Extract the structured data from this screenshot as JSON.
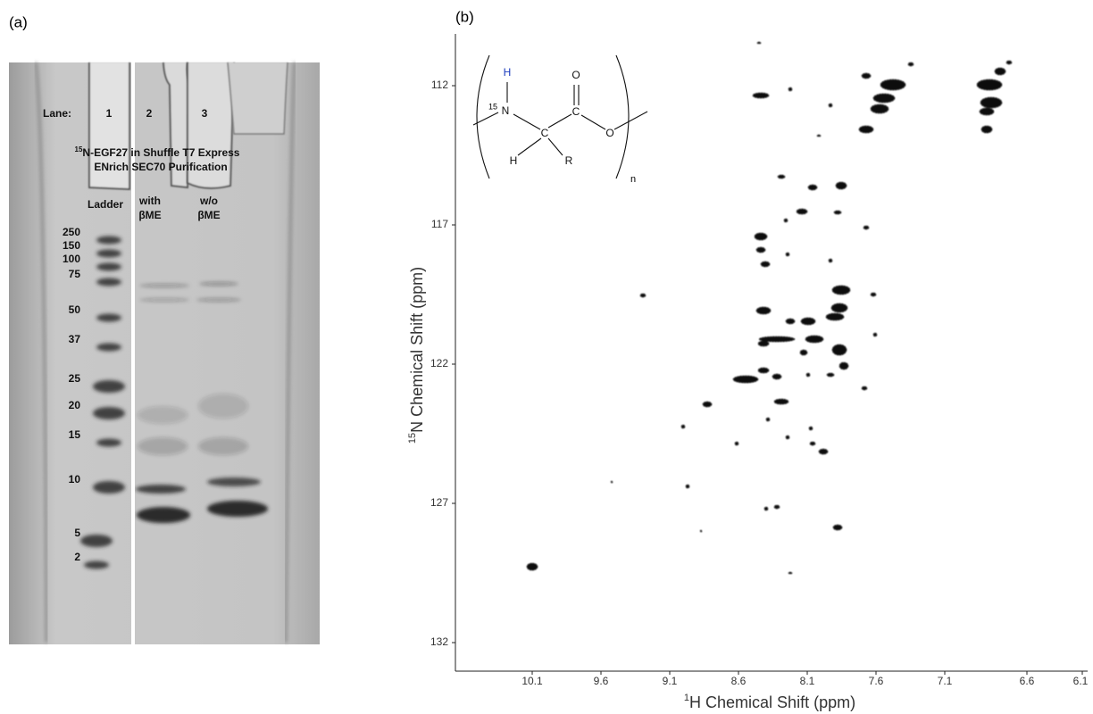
{
  "panel_a": {
    "label": "(a)",
    "lane_header": "Lane:",
    "lanes": [
      "1",
      "2",
      "3"
    ],
    "title_sup": "15",
    "title_line1": "N-EGF27 in Shuffle T7 Express",
    "title_line2": "ENrich SEC70 Purification",
    "lane_labels": {
      "ladder": "Ladder",
      "lane2": [
        "with",
        "βME"
      ],
      "lane3": [
        "w/o",
        "βME"
      ]
    },
    "ladder_markers": [
      "250",
      "150",
      "100",
      "75",
      "50",
      "37",
      "25",
      "20",
      "15",
      "10",
      "5",
      "2"
    ]
  },
  "panel_b": {
    "label": "(b)",
    "x_label_sup": "1",
    "x_label": "H Chemical Shift (ppm)",
    "y_label_sup": "15",
    "y_label": "N Chemical Shift (ppm)",
    "x_ticks": [
      "10.1",
      "9.6",
      "9.1",
      "8.6",
      "8.1",
      "7.6",
      "7.1",
      "6.6",
      "6.1"
    ],
    "y_ticks": [
      "112",
      "117",
      "122",
      "127",
      "132"
    ],
    "structure": {
      "amide_h": "H",
      "isotope": "15",
      "nitrogen": "N",
      "alpha_c": "C",
      "carbonyl_o": "O",
      "carbonyl_c": "C",
      "ester_o": "O",
      "alpha_h": "H",
      "side_chain": "R",
      "repeat": "n"
    }
  }
}
